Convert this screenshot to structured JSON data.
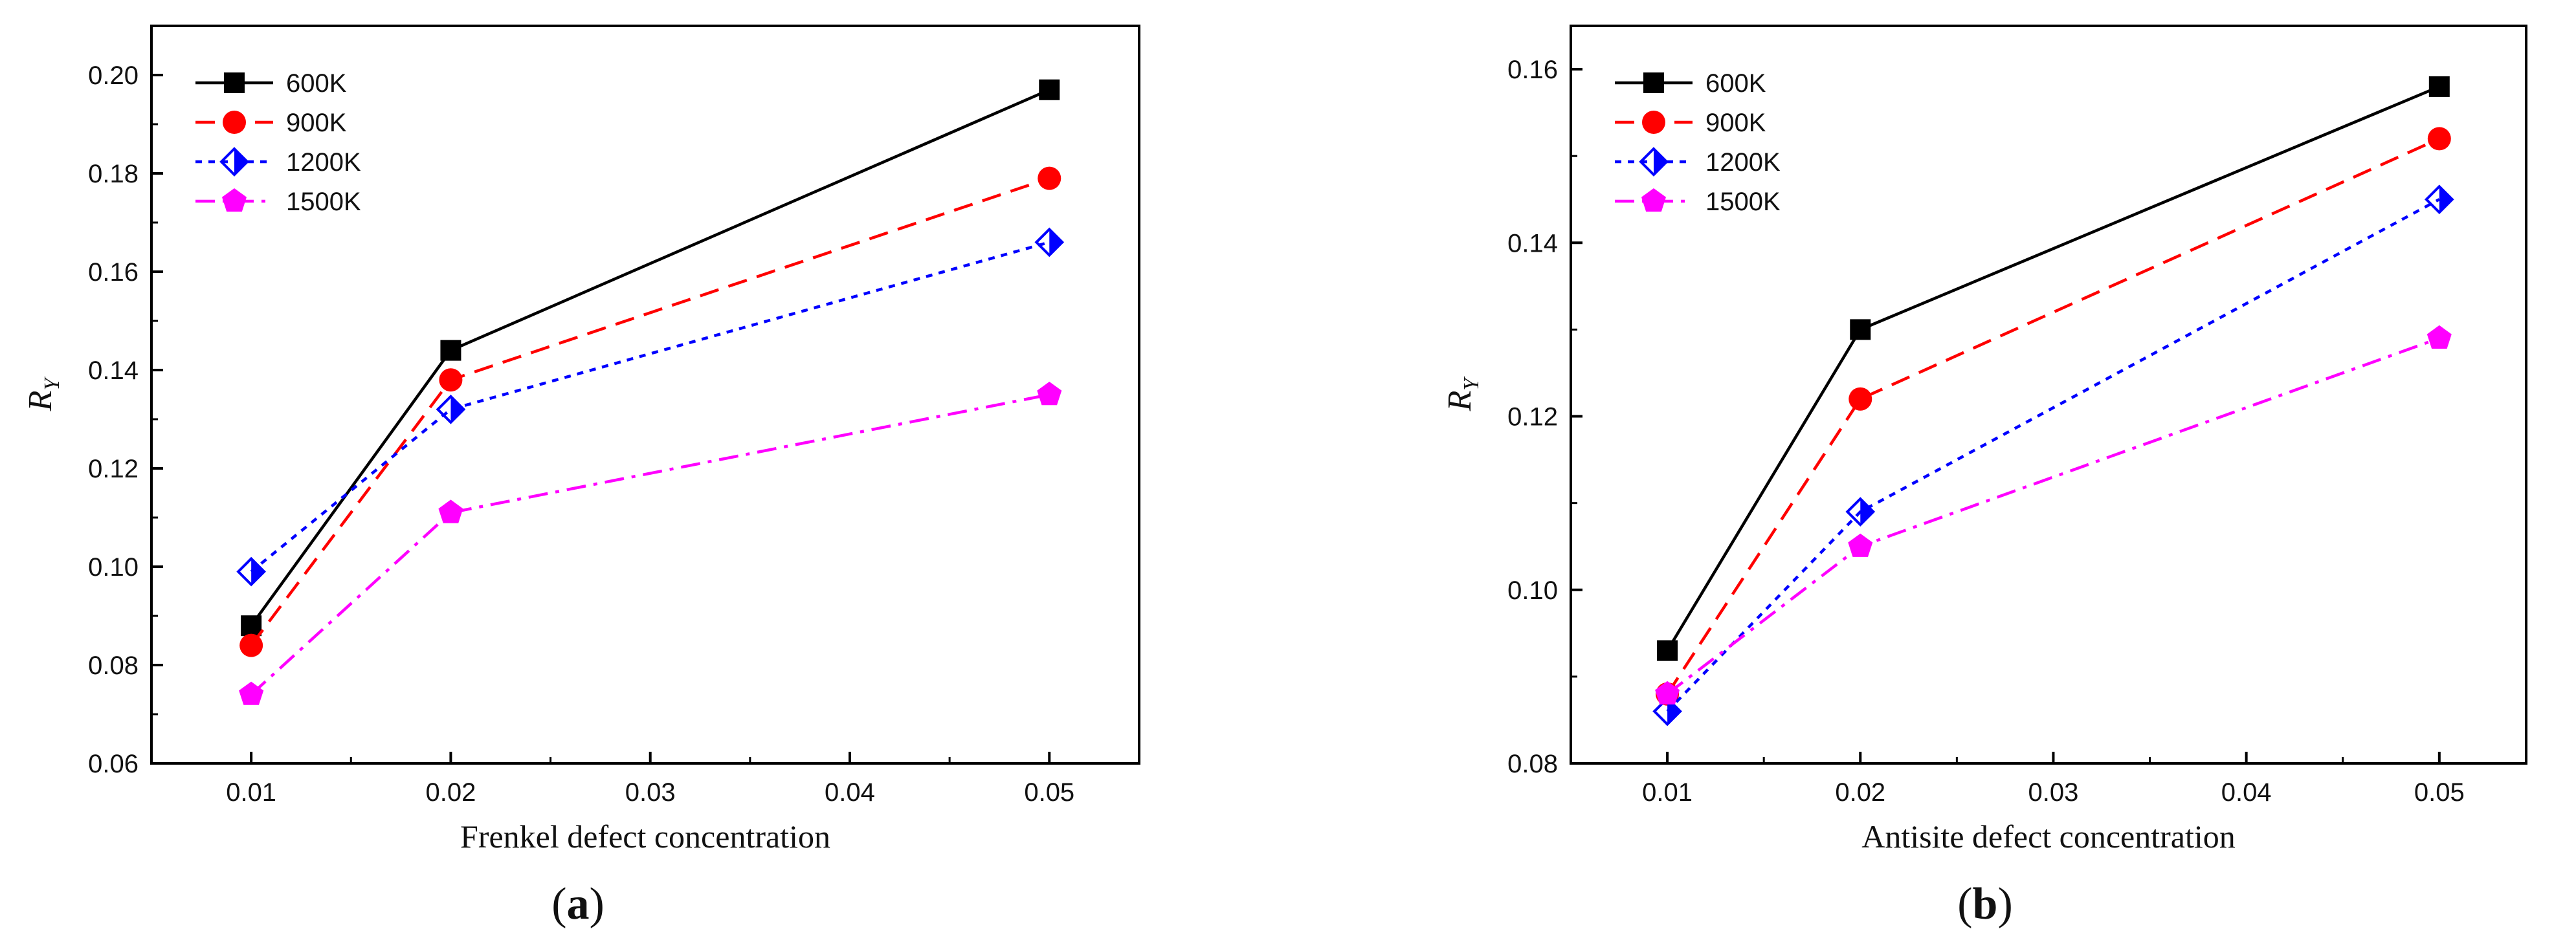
{
  "chart_data": [
    {
      "id": "a",
      "type": "line",
      "panel_label": {
        "open": "(",
        "letter": "a",
        "close": ")"
      },
      "xlabel": "Frenkel defect concentration",
      "ylabel": "R",
      "ylabel_sub": "Y",
      "xlim": [
        0.005,
        0.0545
      ],
      "ylim": [
        0.06,
        0.21
      ],
      "xticks": [
        0.01,
        0.02,
        0.03,
        0.04,
        0.05
      ],
      "xtick_labels": [
        "0.01",
        "0.02",
        "0.03",
        "0.04",
        "0.05"
      ],
      "yticks": [
        0.06,
        0.08,
        0.1,
        0.12,
        0.14,
        0.16,
        0.18,
        0.2
      ],
      "ytick_labels": [
        "0.06",
        "0.08",
        "0.10",
        "0.12",
        "0.14",
        "0.16",
        "0.18",
        "0.20"
      ],
      "legend_position": "top-left",
      "x": [
        0.01,
        0.02,
        0.05
      ],
      "series": [
        {
          "name": "600K",
          "values": [
            0.088,
            0.144,
            0.197
          ],
          "color": "#000000",
          "dash": "solid",
          "marker": "square"
        },
        {
          "name": "900K",
          "values": [
            0.084,
            0.138,
            0.179
          ],
          "color": "#ff0000",
          "dash": "dash",
          "marker": "circle"
        },
        {
          "name": "1200K",
          "values": [
            0.099,
            0.132,
            0.166
          ],
          "color": "#0000ff",
          "dash": "dot",
          "marker": "half-diamond"
        },
        {
          "name": "1500K",
          "values": [
            0.074,
            0.111,
            0.135
          ],
          "color": "#ff00ff",
          "dash": "dashdot",
          "marker": "pentagon"
        }
      ]
    },
    {
      "id": "b",
      "type": "line",
      "panel_label": {
        "open": "(",
        "letter": "b",
        "close": ")"
      },
      "xlabel": "Antisite defect concentration",
      "ylabel": "R",
      "ylabel_sub": "Y",
      "xlim": [
        0.005,
        0.0545
      ],
      "ylim": [
        0.08,
        0.165
      ],
      "xticks": [
        0.01,
        0.02,
        0.03,
        0.04,
        0.05
      ],
      "xtick_labels": [
        "0.01",
        "0.02",
        "0.03",
        "0.04",
        "0.05"
      ],
      "yticks": [
        0.08,
        0.1,
        0.12,
        0.14,
        0.16
      ],
      "ytick_labels": [
        "0.08",
        "0.10",
        "0.12",
        "0.14",
        "0.16"
      ],
      "legend_position": "top-left",
      "x": [
        0.01,
        0.02,
        0.05
      ],
      "series": [
        {
          "name": "600K",
          "values": [
            0.093,
            0.13,
            0.158
          ],
          "color": "#000000",
          "dash": "solid",
          "marker": "square"
        },
        {
          "name": "900K",
          "values": [
            0.088,
            0.122,
            0.152
          ],
          "color": "#ff0000",
          "dash": "dash",
          "marker": "circle"
        },
        {
          "name": "1200K",
          "values": [
            0.086,
            0.109,
            0.145
          ],
          "color": "#0000ff",
          "dash": "dot",
          "marker": "half-diamond"
        },
        {
          "name": "1500K",
          "values": [
            0.088,
            0.105,
            0.129
          ],
          "color": "#ff00ff",
          "dash": "dashdot",
          "marker": "pentagon"
        }
      ]
    }
  ]
}
